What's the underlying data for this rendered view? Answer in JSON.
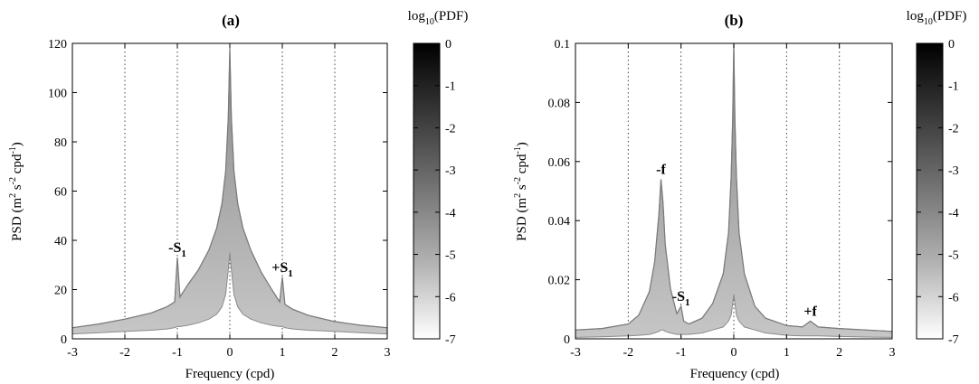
{
  "chart_data": [
    {
      "type": "area",
      "title": "(a)",
      "xlabel": "Frequency (cpd)",
      "ylabel_parts": [
        "PSD (m",
        "2",
        " s",
        "-2",
        " cpd",
        "-1",
        ")"
      ],
      "xlim": [
        -3,
        3
      ],
      "ylim": [
        0,
        120
      ],
      "xticks": [
        "-3",
        "-2",
        "-1",
        "0",
        "1",
        "2",
        "3"
      ],
      "yticks": [
        "0",
        "20",
        "40",
        "60",
        "80",
        "100",
        "120"
      ],
      "ytick_values": [
        0,
        20,
        40,
        60,
        80,
        100,
        120
      ],
      "grid": "vertical dotted lines at integer frequencies",
      "envelope": {
        "x": [
          -3.0,
          -2.5,
          -2.0,
          -1.5,
          -1.2,
          -1.05,
          -1.0,
          -0.95,
          -0.8,
          -0.6,
          -0.4,
          -0.25,
          -0.15,
          -0.08,
          -0.03,
          0.0,
          0.03,
          0.08,
          0.15,
          0.25,
          0.4,
          0.6,
          0.8,
          0.95,
          1.0,
          1.05,
          1.2,
          1.5,
          2.0,
          2.5,
          3.0
        ],
        "upper": [
          4.5,
          6,
          8,
          10.5,
          13,
          15,
          33,
          17,
          22,
          28,
          36,
          45,
          55,
          68,
          90,
          118,
          90,
          68,
          55,
          45,
          36,
          27,
          20,
          15,
          25,
          14,
          12,
          9.5,
          7,
          5.5,
          4.5
        ],
        "lower": [
          2,
          2.5,
          3,
          3.5,
          4,
          4.5,
          5,
          5,
          5.5,
          6.5,
          8,
          10,
          13,
          18,
          28,
          35,
          28,
          18,
          13,
          10,
          8,
          6.5,
          5.5,
          5,
          5,
          4.5,
          4,
          3.5,
          3,
          2.5,
          2
        ]
      },
      "annotations": [
        {
          "label": "-S",
          "sub": "1",
          "x": -1.0,
          "y": 33
        },
        {
          "label": "+S",
          "sub": "1",
          "x": 1.0,
          "y": 25
        }
      ],
      "colorbar": {
        "label_parts": [
          "log",
          "10",
          "(PDF)"
        ],
        "ticks": [
          "0",
          "-1",
          "-2",
          "-3",
          "-4",
          "-5",
          "-6",
          "-7"
        ],
        "range": [
          -7,
          0
        ]
      }
    },
    {
      "type": "area",
      "title": "(b)",
      "xlabel": "Frequency (cpd)",
      "ylabel_parts": [
        "PSD (m",
        "2",
        " s",
        "-2",
        " cpd",
        "-1",
        ")"
      ],
      "xlim": [
        -3,
        3
      ],
      "ylim": [
        0,
        0.1
      ],
      "xticks": [
        "-3",
        "-2",
        "-1",
        "0",
        "1",
        "2",
        "3"
      ],
      "yticks": [
        "0",
        "0.02",
        "0.04",
        "0.06",
        "0.08",
        "0.1"
      ],
      "ytick_values": [
        0,
        0.02,
        0.04,
        0.06,
        0.08,
        0.1
      ],
      "grid": "vertical dotted lines at integer frequencies",
      "envelope": {
        "x": [
          -3.0,
          -2.5,
          -2.0,
          -1.8,
          -1.6,
          -1.5,
          -1.42,
          -1.38,
          -1.34,
          -1.3,
          -1.2,
          -1.08,
          -1.0,
          -0.95,
          -0.85,
          -0.6,
          -0.4,
          -0.2,
          -0.1,
          -0.05,
          -0.02,
          0.0,
          0.02,
          0.05,
          0.1,
          0.2,
          0.4,
          0.6,
          1.0,
          1.3,
          1.45,
          1.6,
          2.0,
          2.5,
          3.0
        ],
        "upper": [
          0.003,
          0.0035,
          0.005,
          0.008,
          0.016,
          0.026,
          0.042,
          0.054,
          0.046,
          0.032,
          0.017,
          0.0085,
          0.011,
          0.006,
          0.005,
          0.007,
          0.012,
          0.022,
          0.036,
          0.055,
          0.075,
          0.1,
          0.075,
          0.055,
          0.036,
          0.022,
          0.011,
          0.007,
          0.0045,
          0.004,
          0.006,
          0.004,
          0.0035,
          0.003,
          0.0025
        ],
        "lower": [
          0.0005,
          0.0007,
          0.001,
          0.0012,
          0.0015,
          0.002,
          0.0025,
          0.003,
          0.003,
          0.0025,
          0.002,
          0.0015,
          0.0015,
          0.0015,
          0.0015,
          0.002,
          0.003,
          0.004,
          0.006,
          0.008,
          0.012,
          0.015,
          0.012,
          0.008,
          0.006,
          0.004,
          0.003,
          0.002,
          0.0012,
          0.001,
          0.001,
          0.001,
          0.0008,
          0.0006,
          0.0005
        ]
      },
      "annotations": [
        {
          "label": "-f",
          "sub": "",
          "x": -1.38,
          "y": 0.054
        },
        {
          "label": "-S",
          "sub": "1",
          "x": -1.0,
          "y": 0.011
        },
        {
          "label": "+f",
          "sub": "",
          "x": 1.45,
          "y": 0.006
        }
      ],
      "colorbar": {
        "label_parts": [
          "log",
          "10",
          "(PDF)"
        ],
        "ticks": [
          "0",
          "-1",
          "-2",
          "-3",
          "-4",
          "-5",
          "-6",
          "-7"
        ],
        "range": [
          -7,
          0
        ]
      }
    }
  ],
  "colors": {
    "envelope_dark": "#8a8a8a",
    "envelope_light": "#c6c6c6",
    "colorbar_top": "#000000",
    "colorbar_bottom": "#ffffff"
  }
}
